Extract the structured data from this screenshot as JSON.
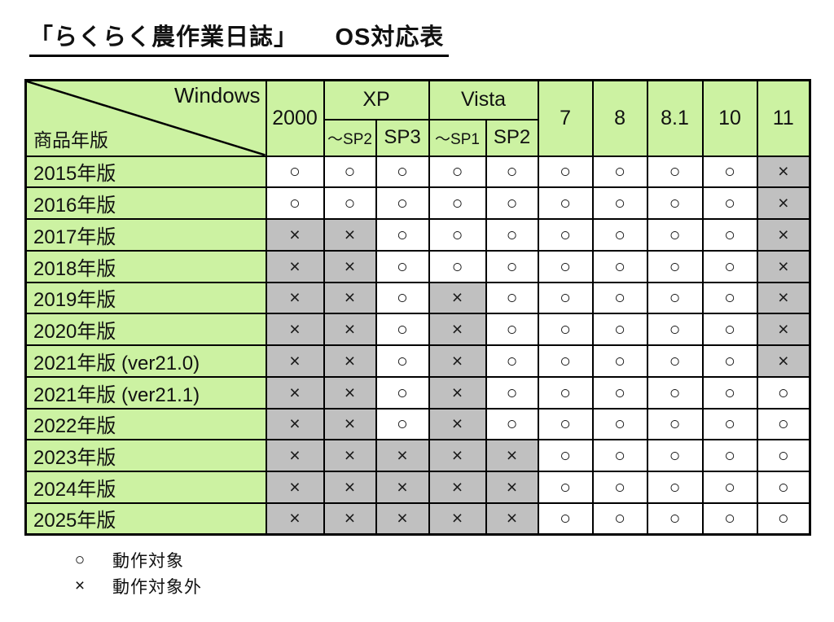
{
  "title": "「らくらく農作業日誌」　　OS対応表",
  "table": {
    "corner": {
      "top_right": "Windows",
      "bottom_left": "商品年版"
    },
    "header": {
      "win2000": "2000",
      "xp": "XP",
      "xp_sub": [
        "～SP2",
        "SP3"
      ],
      "vista": "Vista",
      "vista_sub": [
        "～SP1",
        "SP2"
      ],
      "win7": "7",
      "win8": "8",
      "win81": "8.1",
      "win10": "10",
      "win11": "11"
    },
    "rows": [
      {
        "label": "2015年版",
        "cells": [
          "ok",
          "ok",
          "ok",
          "ok",
          "ok",
          "ok",
          "ok",
          "ok",
          "ok",
          "ng"
        ]
      },
      {
        "label": "2016年版",
        "cells": [
          "ok",
          "ok",
          "ok",
          "ok",
          "ok",
          "ok",
          "ok",
          "ok",
          "ok",
          "ng"
        ]
      },
      {
        "label": "2017年版",
        "cells": [
          "ng",
          "ng",
          "ok",
          "ok",
          "ok",
          "ok",
          "ok",
          "ok",
          "ok",
          "ng"
        ]
      },
      {
        "label": "2018年版",
        "cells": [
          "ng",
          "ng",
          "ok",
          "ok",
          "ok",
          "ok",
          "ok",
          "ok",
          "ok",
          "ng"
        ]
      },
      {
        "label": "2019年版",
        "cells": [
          "ng",
          "ng",
          "ok",
          "ng",
          "ok",
          "ok",
          "ok",
          "ok",
          "ok",
          "ng"
        ]
      },
      {
        "label": "2020年版",
        "cells": [
          "ng",
          "ng",
          "ok",
          "ng",
          "ok",
          "ok",
          "ok",
          "ok",
          "ok",
          "ng"
        ]
      },
      {
        "label": "2021年版 (ver21.0)",
        "cells": [
          "ng",
          "ng",
          "ok",
          "ng",
          "ok",
          "ok",
          "ok",
          "ok",
          "ok",
          "ng"
        ]
      },
      {
        "label": "2021年版 (ver21.1)",
        "cells": [
          "ng",
          "ng",
          "ok",
          "ng",
          "ok",
          "ok",
          "ok",
          "ok",
          "ok",
          "ok"
        ]
      },
      {
        "label": "2022年版",
        "cells": [
          "ng",
          "ng",
          "ok",
          "ng",
          "ok",
          "ok",
          "ok",
          "ok",
          "ok",
          "ok"
        ]
      },
      {
        "label": "2023年版",
        "cells": [
          "ng",
          "ng",
          "ng",
          "ng",
          "ng",
          "ok",
          "ok",
          "ok",
          "ok",
          "ok"
        ]
      },
      {
        "label": "2024年版",
        "cells": [
          "ng",
          "ng",
          "ng",
          "ng",
          "ng",
          "ok",
          "ok",
          "ok",
          "ok",
          "ok"
        ]
      },
      {
        "label": "2025年版",
        "cells": [
          "ng",
          "ng",
          "ng",
          "ng",
          "ng",
          "ok",
          "ok",
          "ok",
          "ok",
          "ok"
        ]
      }
    ]
  },
  "symbols": {
    "ok": "○",
    "ng": "×"
  },
  "legend": [
    {
      "symbol": "○",
      "label": "動作対象"
    },
    {
      "symbol": "×",
      "label": "動作対象外"
    }
  ],
  "colors": {
    "header_green": "#ccf2a2",
    "unsupported_gray": "#c0c0c0",
    "supported_white": "#ffffff",
    "border_black": "#000000"
  }
}
